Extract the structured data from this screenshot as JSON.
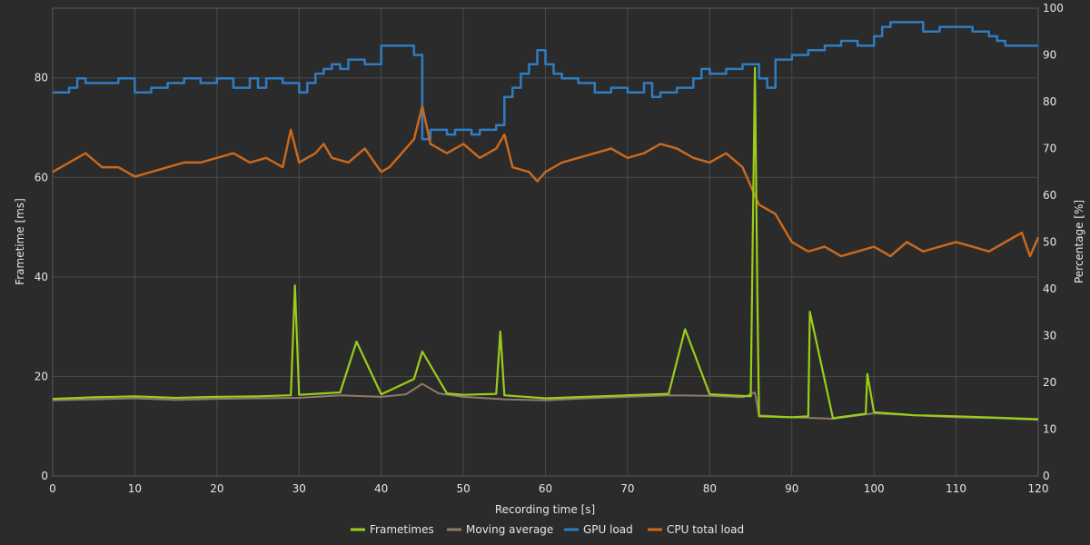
{
  "chart_data": {
    "type": "line",
    "xlabel": "Recording time [s]",
    "ylabel_left": "Frametime [ms]",
    "ylabel_right": "Percentage [%]",
    "xlim": [
      0,
      120
    ],
    "ylim_left": [
      0,
      94
    ],
    "ylim_right": [
      0,
      100
    ],
    "x_ticks": [
      0,
      10,
      20,
      30,
      40,
      50,
      60,
      70,
      80,
      90,
      100,
      110,
      120
    ],
    "y_left_ticks": [
      0,
      20,
      40,
      60,
      80
    ],
    "y_right_ticks": [
      0,
      10,
      20,
      30,
      40,
      50,
      60,
      70,
      80,
      90,
      100
    ],
    "grid": true,
    "legend_position": "bottom-center",
    "colors": {
      "background": "#2b2b2b",
      "grid": "#4a4a4a",
      "text": "#e6e6e6",
      "frametimes": "#9acd1b",
      "moving_average": "#8c7b6b",
      "gpu_load": "#2f7cc2",
      "cpu_load": "#c8691f"
    },
    "series": [
      {
        "name": "GPU load",
        "axis": "right",
        "x": [
          0,
          2,
          3,
          4,
          8,
          10,
          12,
          14,
          16,
          18,
          20,
          22,
          24,
          25,
          26,
          28,
          30,
          31,
          32,
          33,
          34,
          35,
          36,
          38,
          40,
          42,
          44,
          45,
          46,
          48,
          49,
          51,
          52,
          54,
          55,
          56,
          57,
          58,
          59,
          60,
          61,
          62,
          64,
          66,
          68,
          70,
          72,
          73,
          74,
          76,
          78,
          79,
          80,
          82,
          84,
          86,
          87,
          88,
          90,
          92,
          94,
          96,
          98,
          100,
          101,
          102,
          104,
          106,
          108,
          110,
          112,
          114,
          115,
          116,
          118,
          120
        ],
        "y": [
          82,
          83,
          85,
          84,
          85,
          82,
          83,
          84,
          85,
          84,
          85,
          83,
          85,
          83,
          85,
          84,
          82,
          84,
          86,
          87,
          88,
          87,
          89,
          88,
          92,
          92,
          90,
          72,
          74,
          73,
          74,
          73,
          74,
          75,
          81,
          83,
          86,
          88,
          91,
          88,
          86,
          85,
          84,
          82,
          83,
          82,
          84,
          81,
          82,
          83,
          85,
          87,
          86,
          87,
          88,
          85,
          83,
          89,
          90,
          91,
          92,
          93,
          92,
          94,
          96,
          97,
          97,
          95,
          96,
          96,
          95,
          94,
          93,
          92,
          92,
          92
        ]
      },
      {
        "name": "CPU total load",
        "axis": "right",
        "x": [
          0,
          2,
          4,
          6,
          8,
          10,
          12,
          14,
          16,
          18,
          20,
          22,
          24,
          26,
          28,
          29,
          30,
          32,
          33,
          34,
          36,
          38,
          40,
          41,
          42,
          44,
          45,
          46,
          48,
          50,
          52,
          54,
          55,
          56,
          58,
          59,
          60,
          62,
          64,
          66,
          68,
          70,
          72,
          74,
          76,
          78,
          80,
          82,
          84,
          85,
          86,
          88,
          89,
          90,
          92,
          94,
          96,
          98,
          100,
          102,
          104,
          106,
          108,
          110,
          112,
          114,
          116,
          118,
          119,
          120
        ],
        "y": [
          65,
          67,
          69,
          66,
          66,
          64,
          65,
          66,
          67,
          67,
          68,
          69,
          67,
          68,
          66,
          74,
          67,
          69,
          71,
          68,
          67,
          70,
          65,
          66,
          68,
          72,
          79,
          71,
          69,
          71,
          68,
          70,
          73,
          66,
          65,
          63,
          65,
          67,
          68,
          69,
          70,
          68,
          69,
          71,
          70,
          68,
          67,
          69,
          66,
          62,
          58,
          56,
          53,
          50,
          48,
          49,
          47,
          48,
          49,
          47,
          50,
          48,
          49,
          50,
          49,
          48,
          50,
          52,
          47,
          51
        ]
      },
      {
        "name": "Moving average",
        "axis": "left",
        "x": [
          0,
          5,
          10,
          15,
          20,
          25,
          30,
          35,
          40,
          43,
          45,
          47,
          50,
          55,
          60,
          65,
          70,
          75,
          80,
          84,
          85.5,
          86,
          90,
          95,
          100,
          105,
          110,
          115,
          120
        ],
        "y": [
          15.2,
          15.4,
          15.6,
          15.3,
          15.5,
          15.6,
          15.7,
          16.2,
          15.9,
          16.4,
          18.5,
          16.6,
          15.9,
          15.4,
          15.2,
          15.6,
          15.9,
          16.2,
          16.1,
          15.8,
          16.8,
          12.2,
          11.8,
          11.5,
          12.6,
          12.2,
          11.8,
          11.6,
          11.3
        ]
      },
      {
        "name": "Frametimes",
        "axis": "left",
        "x": [
          0,
          5,
          10,
          15,
          20,
          25,
          29,
          29.5,
          30,
          35,
          37,
          40,
          44,
          45,
          48,
          50,
          54,
          54.5,
          55,
          60,
          65,
          70,
          75,
          77,
          80,
          85,
          85.5,
          85.8,
          86,
          90,
          92,
          92.2,
          95,
          99,
          99.2,
          100,
          105,
          110,
          115,
          120
        ],
        "y": [
          15.5,
          15.8,
          16.0,
          15.7,
          15.9,
          16.0,
          16.2,
          38.3,
          16.3,
          16.8,
          27.0,
          16.4,
          19.5,
          25.0,
          16.6,
          16.3,
          16.5,
          29.0,
          16.2,
          15.6,
          15.9,
          16.2,
          16.5,
          29.5,
          16.4,
          16.0,
          82.0,
          36.0,
          12.0,
          11.8,
          12.0,
          33.0,
          11.6,
          12.5,
          20.5,
          12.8,
          12.2,
          12.0,
          11.7,
          11.4
        ]
      }
    ],
    "legend": [
      "Frametimes",
      "Moving average",
      "GPU load",
      "CPU total load"
    ]
  }
}
